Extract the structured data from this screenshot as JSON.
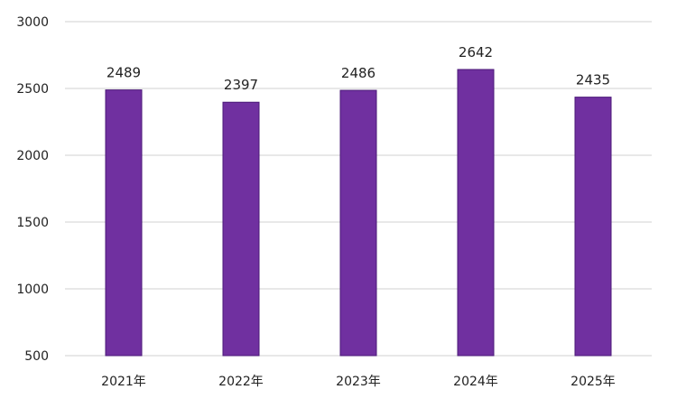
{
  "chart_data": {
    "type": "bar",
    "categories": [
      "2021年",
      "2022年",
      "2023年",
      "2024年",
      "2025年"
    ],
    "values": [
      2489,
      2397,
      2486,
      2642,
      2435
    ],
    "data_labels": [
      "2489",
      "2397",
      "2486",
      "2642",
      "2435"
    ],
    "ylim": [
      500,
      3000
    ],
    "yticks": [
      500,
      1000,
      1500,
      2000,
      2500,
      3000
    ],
    "ytick_labels": [
      "500",
      "1000",
      "1500",
      "2000",
      "2500",
      "3000"
    ],
    "title": "",
    "xlabel": "",
    "ylabel": "",
    "grid": "horizontal",
    "legend": "none",
    "bar_color": "#7030a0",
    "bar_edge_color": "#4b1a78"
  }
}
